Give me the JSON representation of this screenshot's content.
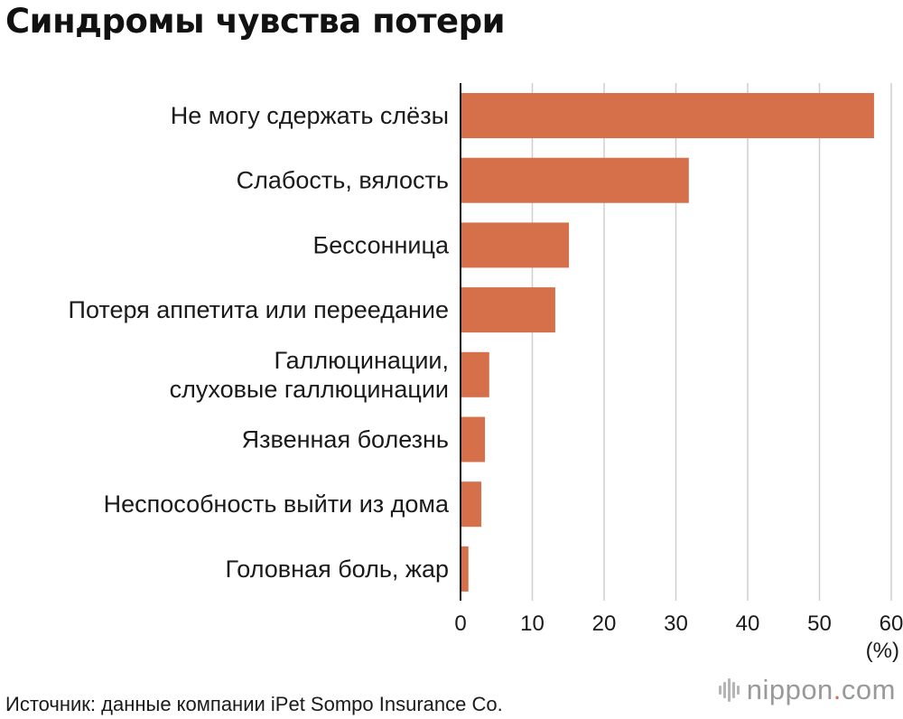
{
  "chart_data": {
    "type": "bar",
    "orientation": "horizontal",
    "title": "Синдромы чувства потери",
    "categories": [
      "Не могу сдержать слёзы",
      "Слабость, вялость",
      "Бессонница",
      "Потеря аппетита или переедание",
      "Галлюцинации,\nслуховые галлюцинации",
      "Язвенная болезнь",
      "Неспособность выйти из дома",
      "Головная боль, жар"
    ],
    "values": [
      57.6,
      31.8,
      15.1,
      13.2,
      4.0,
      3.4,
      2.9,
      1.1
    ],
    "xlim": [
      0,
      60
    ],
    "xticks": [
      0,
      10,
      20,
      30,
      40,
      50,
      60
    ],
    "xunit": "(%)",
    "grid": true,
    "bar_color": "#d5704b"
  },
  "source": "Источник: данные компании iPet Sompo Insurance Co.",
  "brand": {
    "name": "nippon",
    "dot": ".",
    "tld": "com",
    "dot_color": "#d5704b"
  }
}
